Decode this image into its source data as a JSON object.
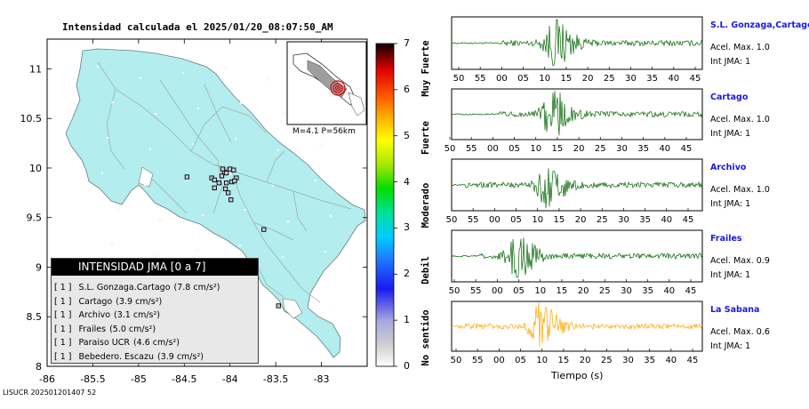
{
  "title": "Intensidad calculada el 2025/01/20_08:07:50_AM",
  "footer_id": "LISUCR 202501201407 52",
  "inset_caption": "M=4.1 P=56km",
  "legend": {
    "header": "INTENSIDAD JMA [0 a 7]",
    "entries": [
      {
        "intensity": "[ 1 ]",
        "station": "S.L. Gonzaga.Cartago",
        "accel": "(7.8 cm/s²)"
      },
      {
        "intensity": "[ 1 ]",
        "station": "Cartago",
        "accel": "(3.9 cm/s²)"
      },
      {
        "intensity": "[ 1 ]",
        "station": "Archivo",
        "accel": "(3.1 cm/s²)"
      },
      {
        "intensity": "[ 1 ]",
        "station": "Frailes",
        "accel": "(5.0 cm/s²)"
      },
      {
        "intensity": "[ 1 ]",
        "station": "Paraiso UCR",
        "accel": "(4.6 cm/s²)"
      },
      {
        "intensity": "[ 1 ]",
        "station": "Bebedero. Escazu",
        "accel": "(3.9 cm/s²)"
      }
    ]
  },
  "colorbar": {
    "ticks": [
      "0",
      "1",
      "2",
      "3",
      "4",
      "5",
      "6",
      "7"
    ],
    "words": [
      "No sentido",
      "Debil",
      "Moderado",
      "Fuerte",
      "Muy Fuerte"
    ]
  },
  "traces_xlabel": "Tiempo (s)",
  "colors": {
    "map_land": "#b3edee",
    "trace_green": "#006400",
    "trace_orange": "#ffa500",
    "station_name": "#1a1adf"
  },
  "chart_data": [
    {
      "type": "scatter",
      "title": "Intensidad calculada el 2025/01/20_08:07:50_AM",
      "xlabel": "",
      "ylabel": "",
      "xlim": [
        -86,
        -82.5
      ],
      "ylim": [
        8,
        11.3
      ],
      "x_ticks": [
        "-86",
        "-85.5",
        "-85",
        "-84.5",
        "-84",
        "-83.5",
        "-83"
      ],
      "y_ticks": [
        "8",
        "8.5",
        "9",
        "9.5",
        "10",
        "10.5",
        "11"
      ],
      "x_tick_values": [
        -86,
        -85.5,
        -85,
        -84.5,
        -84,
        -83.5,
        -83
      ],
      "y_tick_values": [
        8,
        8.5,
        9,
        9.5,
        10,
        10.5,
        11
      ],
      "station_points": [
        {
          "x": -84.47,
          "y": 9.91
        },
        {
          "x": -84.2,
          "y": 9.9
        },
        {
          "x": -84.17,
          "y": 9.88
        },
        {
          "x": -84.12,
          "y": 9.85
        },
        {
          "x": -84.09,
          "y": 9.92
        },
        {
          "x": -84.06,
          "y": 9.96
        },
        {
          "x": -84.0,
          "y": 9.99
        },
        {
          "x": -83.96,
          "y": 9.98
        },
        {
          "x": -83.93,
          "y": 9.9
        },
        {
          "x": -84.04,
          "y": 9.85
        },
        {
          "x": -83.98,
          "y": 9.86
        },
        {
          "x": -83.95,
          "y": 9.87
        },
        {
          "x": -84.17,
          "y": 9.8
        },
        {
          "x": -84.05,
          "y": 9.79
        },
        {
          "x": -84.02,
          "y": 9.75
        },
        {
          "x": -83.99,
          "y": 9.68
        },
        {
          "x": -83.63,
          "y": 9.38
        },
        {
          "x": -83.47,
          "y": 8.61
        },
        {
          "x": -84.04,
          "y": 9.95
        },
        {
          "x": -84.08,
          "y": 9.99
        }
      ]
    },
    {
      "type": "line",
      "series": [
        {
          "name": "S.L. Gonzaga,Cartago",
          "acel": "Acel. Max. 1.0",
          "int": "Int JMA: 1",
          "x_ticks": [
            "50",
            "55",
            "00",
            "05",
            "10",
            "15",
            "20",
            "25",
            "30",
            "35",
            "40",
            "45"
          ],
          "onset": 0.19,
          "peak": 0.41,
          "amp": 1.0,
          "color": "green"
        },
        {
          "name": "Cartago",
          "acel": "Acel. Max. 1.0",
          "int": "Int JMA: 1",
          "x_ticks": [
            "50",
            "55",
            "00",
            "05",
            "10",
            "15",
            "20",
            "25",
            "30",
            "35",
            "40",
            "45"
          ],
          "onset": 0.19,
          "peak": 0.4,
          "amp": 1.0,
          "color": "green"
        },
        {
          "name": "Archivo",
          "acel": "Acel. Max. 1.0",
          "int": "Int JMA: 1",
          "x_ticks": [
            "50",
            "55",
            "00",
            "05",
            "10",
            "15",
            "20",
            "25",
            "30",
            "35",
            "40",
            "45"
          ],
          "onset": 0.05,
          "peak": 0.38,
          "amp": 1.0,
          "color": "green"
        },
        {
          "name": "Frailes",
          "acel": "Acel. Max. 0.9",
          "int": "Int JMA: 1",
          "x_ticks": [
            "50",
            "55",
            "00",
            "05",
            "10",
            "15",
            "20",
            "25",
            "30",
            "35",
            "40",
            "45"
          ],
          "onset": 0.11,
          "peak": 0.26,
          "amp": 0.9,
          "color": "green"
        },
        {
          "name": "La Sabana",
          "acel": "Acel. Max. 0.6",
          "int": "Int JMA: 1",
          "x_ticks": [
            "50",
            "55",
            "00",
            "05",
            "10",
            "15",
            "20",
            "25",
            "30",
            "35",
            "40",
            "45"
          ],
          "onset": 0.02,
          "peak": 0.35,
          "amp": 1.0,
          "color": "orange"
        }
      ]
    }
  ]
}
